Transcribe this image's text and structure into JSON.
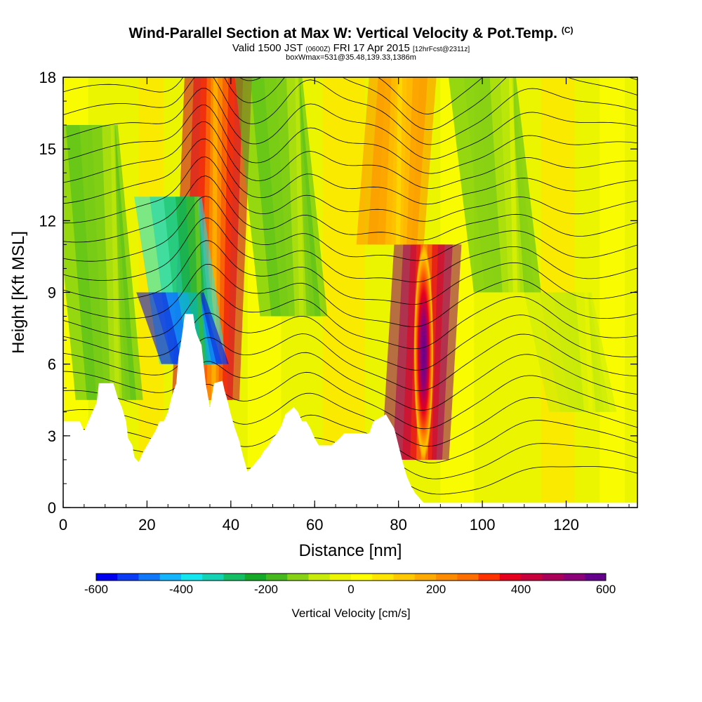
{
  "header": {
    "title": "Wind-Parallel Section at Max W: Vertical Velocity & Pot.Temp.",
    "copyright": "(C)",
    "valid_prefix": "Valid 1500 JST",
    "valid_utc": "(0600Z)",
    "valid_date": "FRI 17 Apr 2015",
    "forecast": "[12hrFcst@2311z]",
    "box_info": "boxWmax=531@35.48,139.33,1386m"
  },
  "colorbar": {
    "label": "Vertical Velocity [cm/s]",
    "min": -600,
    "max": 600,
    "step": 50,
    "tick_labels": [
      "-600",
      "-400",
      "-200",
      "0",
      "200",
      "400",
      "600"
    ],
    "colors": [
      "#0000f0",
      "#0a3cf5",
      "#0f78fa",
      "#14b4ff",
      "#14e6f0",
      "#14d2b4",
      "#14be64",
      "#14aa28",
      "#46b91e",
      "#87d214",
      "#c8eb0a",
      "#ebf500",
      "#ffff00",
      "#ffe600",
      "#ffc800",
      "#ffaa00",
      "#ff8c00",
      "#ff6e00",
      "#ff3200",
      "#e6001e",
      "#c8003c",
      "#aa005a",
      "#8c0078",
      "#64008c"
    ]
  },
  "chart_data": {
    "type": "heatmap",
    "title": "Wind-Parallel Section at Max W: Vertical Velocity & Pot.Temp.",
    "xlabel": "Distance [nm]",
    "ylabel": "Height [Kft MSL]",
    "xlim": [
      0,
      137
    ],
    "ylim": [
      0,
      18
    ],
    "x_ticks": [
      0,
      20,
      40,
      60,
      80,
      100,
      120
    ],
    "y_ticks": [
      0,
      3,
      6,
      9,
      12,
      15,
      18
    ],
    "grid": false,
    "colorbar_range": [
      -600,
      600
    ],
    "colorbar_units": "cm/s",
    "max_vertical_velocity": 531,
    "max_location": "35.48,139.33,1386m",
    "features": [
      {
        "kind": "updraft",
        "x": 36,
        "y_bottom": 4.5,
        "y_top": 18,
        "value": 420
      },
      {
        "kind": "downdraft",
        "x": 33,
        "y_bottom": 6,
        "y_top": 13,
        "value": -380
      },
      {
        "kind": "downdraft",
        "x": 33.5,
        "y_bottom": 6,
        "y_top": 9,
        "value": -600
      },
      {
        "kind": "downdraft",
        "x": 13,
        "y_bottom": 4.5,
        "y_top": 16,
        "value": -180
      },
      {
        "kind": "downdraft",
        "x": 57,
        "y_bottom": 8,
        "y_top": 18,
        "value": -200
      },
      {
        "kind": "updraft",
        "x": 86,
        "y_bottom": 2,
        "y_top": 11,
        "value": 531
      },
      {
        "kind": "updraft",
        "x": 80,
        "y_bottom": 11,
        "y_top": 18,
        "value": 240
      },
      {
        "kind": "downdraft",
        "x": 108,
        "y_bottom": 9,
        "y_top": 18,
        "value": -170
      },
      {
        "kind": "downdraft",
        "x": 126,
        "y_bottom": 4,
        "y_top": 9,
        "value": -90
      }
    ],
    "terrain_kft": [
      [
        0,
        3.6
      ],
      [
        4,
        3.6
      ],
      [
        5,
        3.2
      ],
      [
        6,
        3.6
      ],
      [
        7,
        4.0
      ],
      [
        8,
        4.4
      ],
      [
        8.5,
        5.2
      ],
      [
        12,
        5.2
      ],
      [
        13,
        4.6
      ],
      [
        14,
        4.2
      ],
      [
        15,
        3.6
      ],
      [
        15.5,
        2.9
      ],
      [
        16.5,
        2.6
      ],
      [
        17,
        2.1
      ],
      [
        18,
        1.9
      ],
      [
        19,
        2.3
      ],
      [
        20,
        2.6
      ],
      [
        21,
        2.9
      ],
      [
        22,
        3.2
      ],
      [
        23,
        3.6
      ],
      [
        24,
        3.6
      ],
      [
        25,
        4.0
      ],
      [
        26,
        4.7
      ],
      [
        27,
        5.2
      ],
      [
        27.5,
        6.3
      ],
      [
        28,
        6.8
      ],
      [
        28.5,
        7.4
      ],
      [
        29,
        8.1
      ],
      [
        31,
        8.1
      ],
      [
        31.5,
        7.5
      ],
      [
        32,
        7.2
      ],
      [
        33,
        6.8
      ],
      [
        34,
        5.2
      ],
      [
        35,
        4.2
      ],
      [
        36,
        5.2
      ],
      [
        38,
        5.3
      ],
      [
        38.5,
        4.9
      ],
      [
        39,
        4.6
      ],
      [
        40,
        3.9
      ],
      [
        41,
        3.3
      ],
      [
        42,
        2.8
      ],
      [
        43,
        2.1
      ],
      [
        44,
        1.5
      ],
      [
        45,
        1.7
      ],
      [
        46,
        1.9
      ],
      [
        47,
        2.1
      ],
      [
        48,
        2.4
      ],
      [
        49,
        2.6
      ],
      [
        50,
        2.9
      ],
      [
        51,
        3.1
      ],
      [
        52,
        3.4
      ],
      [
        53,
        3.9
      ],
      [
        55,
        4.2
      ],
      [
        56,
        4.0
      ],
      [
        57,
        3.6
      ],
      [
        58,
        3.6
      ],
      [
        59,
        3.3
      ],
      [
        60,
        2.9
      ],
      [
        61,
        2.6
      ],
      [
        62,
        2.6
      ],
      [
        63,
        2.6
      ],
      [
        64,
        2.6
      ],
      [
        66,
        2.9
      ],
      [
        67,
        3.1
      ],
      [
        68,
        3.1
      ],
      [
        73,
        3.1
      ],
      [
        74,
        3.6
      ],
      [
        77,
        3.9
      ],
      [
        78,
        3.6
      ],
      [
        79,
        3.3
      ],
      [
        80,
        2.6
      ],
      [
        81,
        1.9
      ],
      [
        82,
        1.3
      ],
      [
        83,
        0.9
      ],
      [
        84,
        0.6
      ],
      [
        85,
        0.4
      ],
      [
        86,
        0.2
      ],
      [
        137,
        0.2
      ]
    ]
  }
}
